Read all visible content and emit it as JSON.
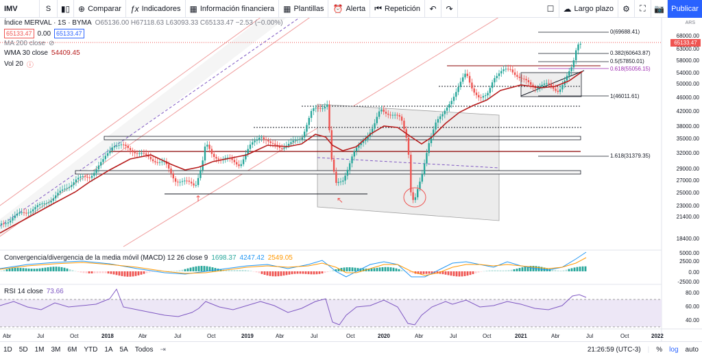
{
  "toolbar": {
    "symbol": "IMV",
    "interval": "S",
    "compare": "Comparar",
    "indicators": "Indicadores",
    "financials": "Información financiera",
    "templates": "Plantillas",
    "alert": "Alerta",
    "replay": "Repetición",
    "layout": "Largo plazo",
    "publish": "Publicar"
  },
  "header": {
    "title": "Índice MERVAL · 1S · BYMA",
    "ohlc": "O65136.00 H67118.63 L63093.33 C65133.47 −2.53 (−0.00%)",
    "bid": "65133.47",
    "spread": "0.00",
    "ask": "65133.47",
    "currency": "ARS"
  },
  "indicators": {
    "ma200": "MA 200 close",
    "wma30_label": "WMA 30 close",
    "wma30_value": "54409.45",
    "vol": "Vol 20",
    "macd_label": "Convergencia/divergencia de la media móvil (MACD) 12 26 close 9",
    "macd_v1": "1698.37",
    "macd_v2": "4247.42",
    "macd_v3": "2549.05",
    "rsi_label": "RSI 14 close",
    "rsi_value": "73.66"
  },
  "price_axis": [
    "68000.00",
    "65133.47",
    "63000.00",
    "58000.00",
    "54000.00",
    "50000.00",
    "46000.00",
    "42000.00",
    "38000.00",
    "35000.00",
    "32000.00",
    "29000.00",
    "27000.00",
    "25000.00",
    "23000.00",
    "21400.00",
    "18400.00"
  ],
  "macd_axis": [
    "5000.00",
    "2500.00",
    "0.00",
    "-2500.00"
  ],
  "rsi_axis": [
    "80.00",
    "60.00",
    "40.00"
  ],
  "time_axis": [
    "Abr",
    "Jul",
    "Oct",
    "2018",
    "Abr",
    "Jul",
    "Oct",
    "2019",
    "Abr",
    "Jul",
    "Oct",
    "2020",
    "Abr",
    "Jul",
    "Oct",
    "2021",
    "Abr",
    "Jul",
    "Oct",
    "2022"
  ],
  "fib": {
    "l0": "0(69688.41)",
    "l0382": "0.382(60643.87)",
    "l05": "0.5(57850.01)",
    "l0618": "0.618(55056.15)",
    "l1": "1(46011.61)",
    "l1618": "1.618(31379.35)"
  },
  "bottom": {
    "ranges": [
      "1D",
      "5D",
      "1M",
      "3M",
      "6M",
      "YTD",
      "1A",
      "5A",
      "Todos"
    ],
    "time": "21:26:59 (UTC-3)",
    "percent": "%",
    "log": "log",
    "auto": "auto"
  },
  "colors": {
    "up": "#26a69a",
    "down": "#ef5350",
    "wma": "#b71c1c",
    "accent": "#2962ff",
    "fib618": "#9c27b0"
  }
}
